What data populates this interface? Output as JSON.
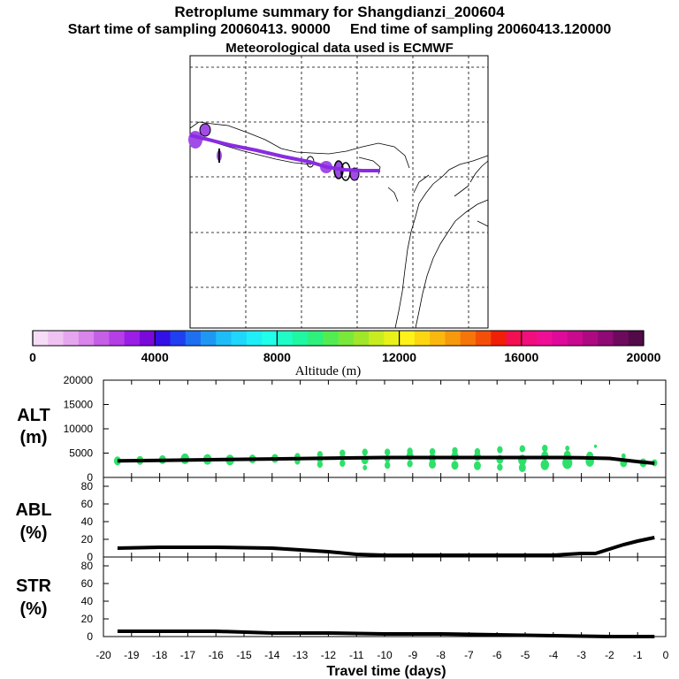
{
  "header": {
    "title": "Retroplume summary for Shangdianzi_200604",
    "start_label": "Start time of sampling 20060413. 90000",
    "end_label": "End time of sampling 20060413.120000",
    "met_label": "Meteorological data used is ECMWF"
  },
  "colorbar": {
    "label": "Altitude (m)",
    "ticks": [
      "0",
      "4000",
      "8000",
      "12000",
      "16000",
      "20000"
    ],
    "colors": [
      "#f6dcf6",
      "#efc2f2",
      "#e6a6ef",
      "#d985ec",
      "#c45fe6",
      "#b53ee6",
      "#9a1ee6",
      "#7a0ad9",
      "#3311e6",
      "#1f3ff0",
      "#1f70f0",
      "#1f98f3",
      "#1fbdf7",
      "#1fd7fa",
      "#1feef7",
      "#1fffe9",
      "#1ffcc6",
      "#1ff7a2",
      "#2ef07d",
      "#52ec52",
      "#7ae83a",
      "#a0e62a",
      "#c8ec20",
      "#e8f21a",
      "#fff21a",
      "#fcd612",
      "#fab80f",
      "#f7990c",
      "#f57509",
      "#f44f08",
      "#f11f08",
      "#f40f50",
      "#f10f7e",
      "#ee0f95",
      "#e00a9a",
      "#c90a8e",
      "#ad0a82",
      "#8f0a74",
      "#6e0a5e",
      "#520a48"
    ]
  },
  "colors": {
    "trajectory": "#8a2be2",
    "alt_points": "#2ee06a",
    "line": "#000000"
  },
  "chart_data": [
    {
      "type": "line",
      "name": "ALT",
      "panel_label": "ALT",
      "panel_unit": "(m)",
      "x": [
        -19.5,
        -18,
        -16,
        -14,
        -12,
        -10,
        -8,
        -6,
        -4,
        -3,
        -2,
        -1,
        -0.4
      ],
      "values": [
        3400,
        3500,
        3650,
        3800,
        3950,
        4100,
        4100,
        4100,
        4100,
        4050,
        3900,
        3250,
        2900
      ],
      "ylim": [
        0,
        20000
      ],
      "yticks": [
        "0",
        "5000",
        "10000",
        "15000",
        "20000"
      ],
      "scatter": [
        {
          "x": -19.5,
          "y": 3400,
          "size": 5
        },
        {
          "x": -18.7,
          "y": 3500,
          "size": 5
        },
        {
          "x": -17.9,
          "y": 3650,
          "size": 5
        },
        {
          "x": -17.1,
          "y": 3850,
          "size": 6
        },
        {
          "x": -16.3,
          "y": 3700,
          "size": 6
        },
        {
          "x": -15.5,
          "y": 3600,
          "size": 6
        },
        {
          "x": -14.7,
          "y": 3800,
          "size": 5
        },
        {
          "x": -13.9,
          "y": 3900,
          "size": 5
        },
        {
          "x": -13.1,
          "y": 3350,
          "size": 4
        },
        {
          "x": -13.1,
          "y": 4300,
          "size": 4
        },
        {
          "x": -12.3,
          "y": 2700,
          "size": 4
        },
        {
          "x": -12.3,
          "y": 3700,
          "size": 4
        },
        {
          "x": -12.3,
          "y": 4700,
          "size": 4
        },
        {
          "x": -11.5,
          "y": 2900,
          "size": 4
        },
        {
          "x": -11.5,
          "y": 4100,
          "size": 4
        },
        {
          "x": -11.5,
          "y": 5000,
          "size": 4
        },
        {
          "x": -10.7,
          "y": 2000,
          "size": 3
        },
        {
          "x": -10.7,
          "y": 3600,
          "size": 5
        },
        {
          "x": -10.7,
          "y": 5200,
          "size": 4
        },
        {
          "x": -9.9,
          "y": 2500,
          "size": 4
        },
        {
          "x": -9.9,
          "y": 3800,
          "size": 4
        },
        {
          "x": -9.9,
          "y": 5200,
          "size": 4
        },
        {
          "x": -9.1,
          "y": 2800,
          "size": 4
        },
        {
          "x": -9.1,
          "y": 4400,
          "size": 5
        },
        {
          "x": -9.1,
          "y": 5400,
          "size": 4
        },
        {
          "x": -8.3,
          "y": 2700,
          "size": 5
        },
        {
          "x": -8.3,
          "y": 4000,
          "size": 5
        },
        {
          "x": -8.3,
          "y": 5300,
          "size": 4
        },
        {
          "x": -7.5,
          "y": 2500,
          "size": 5
        },
        {
          "x": -7.5,
          "y": 4400,
          "size": 5
        },
        {
          "x": -7.5,
          "y": 5500,
          "size": 4
        },
        {
          "x": -6.7,
          "y": 2400,
          "size": 5
        },
        {
          "x": -6.7,
          "y": 4300,
          "size": 5
        },
        {
          "x": -6.7,
          "y": 5300,
          "size": 4
        },
        {
          "x": -5.9,
          "y": 2100,
          "size": 4
        },
        {
          "x": -5.9,
          "y": 3700,
          "size": 5
        },
        {
          "x": -5.9,
          "y": 5700,
          "size": 4
        },
        {
          "x": -5.1,
          "y": 2000,
          "size": 5
        },
        {
          "x": -5.1,
          "y": 3600,
          "size": 6
        },
        {
          "x": -5.1,
          "y": 5900,
          "size": 4
        },
        {
          "x": -4.3,
          "y": 2600,
          "size": 6
        },
        {
          "x": -4.3,
          "y": 4500,
          "size": 5
        },
        {
          "x": -4.3,
          "y": 6000,
          "size": 4
        },
        {
          "x": -3.5,
          "y": 3000,
          "size": 7
        },
        {
          "x": -3.5,
          "y": 4600,
          "size": 5
        },
        {
          "x": -3.5,
          "y": 6000,
          "size": 3
        },
        {
          "x": -2.7,
          "y": 3300,
          "size": 6
        },
        {
          "x": -2.7,
          "y": 4400,
          "size": 5
        },
        {
          "x": -2.5,
          "y": 6400,
          "size": 2
        },
        {
          "x": -1.5,
          "y": 3000,
          "size": 5
        },
        {
          "x": -1.5,
          "y": 4400,
          "size": 3
        },
        {
          "x": -0.8,
          "y": 3000,
          "size": 5
        },
        {
          "x": -0.4,
          "y": 3000,
          "size": 4
        }
      ]
    },
    {
      "type": "line",
      "name": "ABL",
      "panel_label": "ABL",
      "panel_unit": "(%)",
      "x": [
        -19.5,
        -18,
        -16,
        -14,
        -13,
        -12,
        -11,
        -10,
        -8,
        -6,
        -5,
        -4,
        -3,
        -2.5,
        -1.5,
        -1,
        -0.4
      ],
      "values": [
        10,
        11,
        11,
        10,
        8,
        6,
        3,
        2,
        2,
        2,
        2,
        2,
        4,
        4,
        14,
        18,
        22
      ],
      "ylim": [
        0,
        90
      ],
      "yticks": [
        "0",
        "20",
        "40",
        "60",
        "80"
      ]
    },
    {
      "type": "line",
      "name": "STR",
      "panel_label": "STR",
      "panel_unit": "(%)",
      "x": [
        -19.5,
        -18,
        -16,
        -14,
        -12,
        -10,
        -8,
        -6,
        -4,
        -2,
        -0.4
      ],
      "values": [
        6,
        6,
        6,
        4,
        4,
        3,
        3,
        2,
        1,
        0,
        0
      ],
      "ylim": [
        0,
        90
      ],
      "yticks": [
        "0",
        "20",
        "40",
        "60",
        "80"
      ],
      "xlabel": "Travel time (days)",
      "xlim": [
        -20,
        0
      ],
      "xticks": [
        "-20",
        "-19",
        "-18",
        "-17",
        "-16",
        "-15",
        "-14",
        "-13",
        "-12",
        "-11",
        "-10",
        "-9",
        "-8",
        "-7",
        "-6",
        "-5",
        "-4",
        "-3",
        "-2",
        "-1",
        "0"
      ]
    }
  ]
}
